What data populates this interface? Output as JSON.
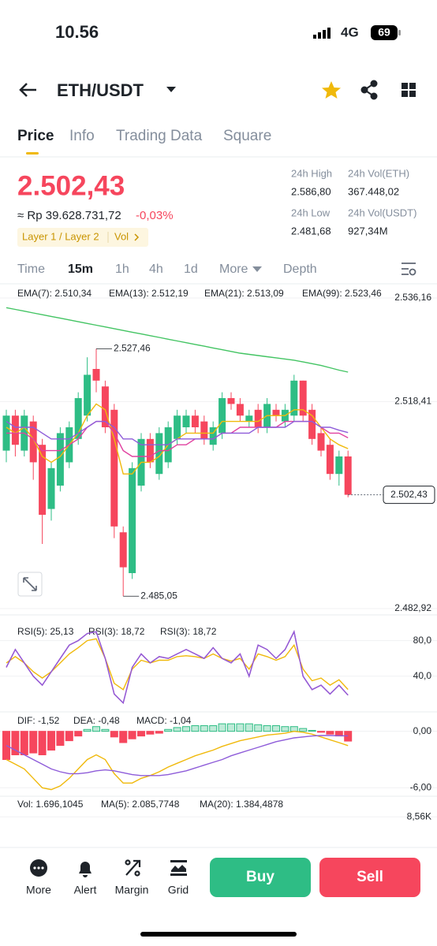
{
  "status_bar": {
    "time": "10.56",
    "network": "4G",
    "battery": "69"
  },
  "header": {
    "pair": "ETH/USDT"
  },
  "tabs": [
    "Price",
    "Info",
    "Trading Data",
    "Square"
  ],
  "price_panel": {
    "price": "2.502,43",
    "fiat": "≈ Rp 39.628.731,72",
    "change": "-0,03%",
    "tags": [
      "Layer 1 / Layer 2",
      "Vol"
    ],
    "stats": [
      {
        "label": "24h High",
        "value": "2.586,80"
      },
      {
        "label": "24h Vol(ETH)",
        "value": "367.448,02"
      },
      {
        "label": "24h Low",
        "value": "2.481,68"
      },
      {
        "label": "24h Vol(USDT)",
        "value": "927,34M"
      }
    ]
  },
  "intervals": [
    "Time",
    "15m",
    "1h",
    "4h",
    "1d",
    "More",
    "Depth"
  ],
  "chart_data": [
    {
      "type": "candlestick",
      "up_color": "#2ebd85",
      "down_color": "#f6465d",
      "grid": true,
      "open": [
        2510,
        2516,
        2510,
        2515,
        2511,
        2500,
        2504,
        2508,
        2512,
        2516,
        2524,
        2521,
        2517,
        2496,
        2489,
        2504,
        2512,
        2506,
        2508,
        2512,
        2514,
        2516,
        2515,
        2511,
        2513,
        2519,
        2518,
        2515,
        2517,
        2514,
        2517,
        2515,
        2516,
        2522,
        2517,
        2513,
        2511,
        2506,
        2509
      ],
      "high": [
        2517,
        2517,
        2517,
        2516,
        2512,
        2508,
        2514,
        2515,
        2520,
        2526,
        2527.46,
        2522,
        2518,
        2497,
        2508,
        2513,
        2513,
        2514,
        2515,
        2517,
        2517,
        2517,
        2516,
        2515,
        2520,
        2520,
        2519,
        2517,
        2518,
        2519,
        2518,
        2518,
        2523,
        2522,
        2518,
        2514,
        2512,
        2510,
        2510
      ],
      "low": [
        2508,
        2509,
        2509,
        2505,
        2494,
        2498,
        2503,
        2507,
        2511,
        2515,
        2520,
        2513,
        2495,
        2485.05,
        2488,
        2503,
        2507,
        2505,
        2507,
        2511,
        2513,
        2513,
        2511,
        2510,
        2512,
        2517,
        2515,
        2514,
        2513,
        2513,
        2515,
        2514,
        2515,
        2515,
        2511,
        2509,
        2505,
        2504,
        2502
      ],
      "close": [
        2516,
        2511,
        2516,
        2508,
        2499,
        2507,
        2513,
        2514,
        2519,
        2523,
        2522,
        2514,
        2497,
        2490,
        2507,
        2512,
        2508,
        2513,
        2514,
        2516,
        2516,
        2514,
        2512,
        2514,
        2519,
        2518,
        2516,
        2516,
        2514,
        2518,
        2516,
        2517,
        2522,
        2516,
        2512,
        2510,
        2506,
        2509,
        2502.43
      ],
      "series": [
        {
          "name": "EMA(7): 2.510,34",
          "color": "#f0b90b",
          "values": [
            2514,
            2513,
            2514,
            2512,
            2509,
            2508,
            2509,
            2511,
            2513,
            2516,
            2518,
            2517,
            2512,
            2506,
            2506,
            2508,
            2508,
            2509,
            2511,
            2512,
            2513,
            2513,
            2513,
            2513,
            2515,
            2515,
            2515,
            2515,
            2515,
            2516,
            2516,
            2516,
            2517,
            2517,
            2516,
            2514,
            2512,
            2511,
            2510.34
          ]
        },
        {
          "name": "EMA(13): 2.512,19",
          "color": "#e040a0",
          "values": [
            2513,
            2513,
            2513,
            2512,
            2510,
            2510,
            2510,
            2511,
            2512,
            2514,
            2515,
            2515,
            2513,
            2510,
            2509,
            2509,
            2509,
            2510,
            2510,
            2511,
            2511,
            2512,
            2512,
            2512,
            2513,
            2513,
            2514,
            2514,
            2514,
            2514,
            2514,
            2515,
            2515,
            2515,
            2515,
            2514,
            2513,
            2513,
            2512.19
          ]
        },
        {
          "name": "EMA(21): 2.513,09",
          "color": "#8e5cd9",
          "values": [
            2515,
            2514,
            2514,
            2514,
            2513,
            2512,
            2512,
            2512,
            2513,
            2514,
            2515,
            2515,
            2514,
            2512,
            2512,
            2511,
            2511,
            2511,
            2511,
            2512,
            2512,
            2512,
            2512,
            2512,
            2513,
            2513,
            2513,
            2513,
            2514,
            2514,
            2514,
            2514,
            2515,
            2515,
            2515,
            2514,
            2514,
            2513.5,
            2513.09
          ]
        },
        {
          "name": "EMA(99): 2.523,46",
          "color": "#43c463",
          "values": [
            2534.5,
            2534.2,
            2533.9,
            2533.6,
            2533.3,
            2533.0,
            2532.7,
            2532.4,
            2532.1,
            2531.8,
            2531.5,
            2531.2,
            2530.9,
            2530.6,
            2530.3,
            2530.0,
            2529.7,
            2529.4,
            2529.1,
            2528.8,
            2528.5,
            2528.2,
            2527.9,
            2527.6,
            2527.3,
            2527.0,
            2526.7,
            2526.5,
            2526.3,
            2526.1,
            2525.9,
            2525.7,
            2525.5,
            2525.2,
            2524.9,
            2524.6,
            2524.2,
            2523.8,
            2523.46
          ]
        }
      ],
      "ylim": [
        2481.84,
        2537.92
      ],
      "yticks": [
        {
          "value": 2536.16,
          "label": "2.536,16"
        },
        {
          "value": 2518.41,
          "label": "2.518,41"
        },
        {
          "value": 2482.92,
          "label": "2.482,92"
        }
      ],
      "annotations": [
        {
          "value": 2527.46,
          "label": "2.527,46"
        },
        {
          "value": 2485.05,
          "label": "2.485,05"
        }
      ],
      "last_price": {
        "value": 2502.43,
        "label": "2.502,43"
      }
    },
    {
      "type": "line",
      "series": [
        {
          "name": "RSI(5): 25,13",
          "color": "#f0b90b",
          "values": [
            55,
            62,
            55,
            45,
            38,
            45,
            55,
            65,
            72,
            80,
            82,
            60,
            32,
            25,
            48,
            58,
            55,
            58,
            58,
            62,
            63,
            62,
            60,
            65,
            60,
            57,
            60,
            48,
            65,
            62,
            58,
            62,
            75,
            48,
            35,
            38,
            30,
            36,
            25.13
          ]
        },
        {
          "name": "RSI(3): 18,72",
          "color": "#e040a0",
          "values": [
            50,
            70,
            55,
            40,
            30,
            45,
            60,
            75,
            80,
            88,
            90,
            60,
            20,
            10,
            50,
            65,
            55,
            62,
            60,
            65,
            70,
            65,
            60,
            72,
            60,
            55,
            65,
            40,
            75,
            70,
            60,
            70,
            90,
            40,
            25,
            30,
            20,
            30,
            18.72
          ]
        },
        {
          "name": "RSI(3): 18,72",
          "color": "#8e5cd9",
          "values": [
            50,
            70,
            55,
            40,
            30,
            45,
            60,
            75,
            80,
            88,
            90,
            60,
            20,
            10,
            50,
            65,
            55,
            62,
            60,
            65,
            70,
            65,
            60,
            72,
            60,
            55,
            65,
            40,
            75,
            70,
            60,
            70,
            90,
            40,
            25,
            30,
            20,
            30,
            18.72
          ]
        }
      ],
      "ylim": [
        0,
        100
      ],
      "yticks": [
        {
          "value": 80,
          "label": "80,0"
        },
        {
          "value": 40,
          "label": "40,0"
        }
      ]
    },
    {
      "type": "macd",
      "up_color": "#2ebd85",
      "down_color": "#f6465d",
      "series": [
        {
          "name": "DIF: -1,52",
          "color": "#f0b90b",
          "values": [
            -3,
            -3.5,
            -4,
            -5,
            -6,
            -6.2,
            -5.8,
            -5,
            -4,
            -3,
            -2.5,
            -3,
            -4.5,
            -5.5,
            -5.5,
            -5,
            -4.7,
            -4.3,
            -3.8,
            -3.4,
            -3,
            -2.6,
            -2.3,
            -2,
            -1.6,
            -1.3,
            -1,
            -0.8,
            -0.6,
            -0.4,
            -0.3,
            -0.2,
            0,
            -0.1,
            -0.3,
            -0.6,
            -0.9,
            -1.2,
            -1.52
          ]
        },
        {
          "name": "DEA: -0,48",
          "color": "#8e5cd9",
          "values": [
            -1.5,
            -2,
            -2.5,
            -3,
            -3.5,
            -4,
            -4.3,
            -4.5,
            -4.5,
            -4.4,
            -4.2,
            -4.1,
            -4.2,
            -4.4,
            -4.6,
            -4.7,
            -4.7,
            -4.7,
            -4.6,
            -4.4,
            -4.2,
            -3.9,
            -3.6,
            -3.3,
            -3,
            -2.6,
            -2.3,
            -2,
            -1.7,
            -1.4,
            -1.1,
            -0.9,
            -0.7,
            -0.6,
            -0.5,
            -0.45,
            -0.45,
            -0.47,
            -0.48
          ]
        }
      ],
      "histogram": {
        "name": "MACD: -1,04",
        "color": "#e040a0",
        "values": [
          -3,
          -2.5,
          -2.5,
          -2.3,
          -2.5,
          -2,
          -1.5,
          -1,
          -0.5,
          0.2,
          0.5,
          0.2,
          -0.6,
          -1.2,
          -0.8,
          -0.5,
          -0.3,
          -0.2,
          0.2,
          0.4,
          0.5,
          0.6,
          0.6,
          0.6,
          0.8,
          0.8,
          0.8,
          0.8,
          0.7,
          0.6,
          0.6,
          0.5,
          0.5,
          0.3,
          0.1,
          -0.1,
          -0.3,
          -0.5,
          -1.04
        ]
      },
      "ylim": [
        -6.9,
        1.9
      ],
      "yticks": [
        {
          "value": 0,
          "label": "0,00"
        },
        {
          "value": -6,
          "label": "-6,00"
        }
      ]
    },
    {
      "type": "volume",
      "series": [
        {
          "name": "Vol: 1.696,1045",
          "color": "#7a6aa8"
        },
        {
          "name": "MA(5): 2.085,7748",
          "color": "#f0b90b"
        },
        {
          "name": "MA(20): 1.384,4878",
          "color": "#8e5cd9"
        }
      ],
      "ylim": [
        5000,
        10500
      ],
      "yticks": [
        {
          "value": 8560,
          "label": "8,56K"
        }
      ]
    }
  ],
  "bottom_bar": {
    "actions": [
      "More",
      "Alert",
      "Margin",
      "Grid"
    ],
    "buy": "Buy",
    "sell": "Sell"
  }
}
